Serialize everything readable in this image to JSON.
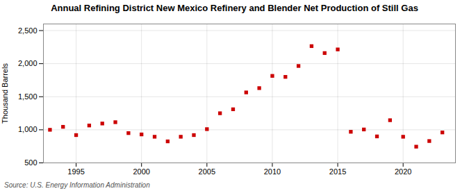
{
  "chart_data": {
    "type": "scatter",
    "title": "Annual Refining District New Mexico Refinery and Blender Net Production of Still Gas",
    "ylabel": "Thousand Barrels",
    "source": "Source: U.S. Energy Information Administration",
    "x": [
      1993,
      1994,
      1995,
      1996,
      1997,
      1998,
      1999,
      2000,
      2001,
      2002,
      2003,
      2004,
      2005,
      2006,
      2007,
      2008,
      2009,
      2010,
      2011,
      2012,
      2013,
      2014,
      2015,
      2016,
      2017,
      2018,
      2019,
      2020,
      2021,
      2022,
      2023
    ],
    "values": [
      1000,
      1045,
      920,
      1065,
      1095,
      1115,
      950,
      930,
      895,
      825,
      895,
      920,
      1010,
      1250,
      1310,
      1565,
      1630,
      1815,
      1800,
      1965,
      2265,
      2160,
      2215,
      970,
      1005,
      900,
      1145,
      895,
      745,
      830,
      960
    ],
    "color": "#cc0000",
    "marker": "square",
    "xlim": [
      1992.5,
      2024
    ],
    "xticks": [
      1995,
      2000,
      2005,
      2010,
      2015,
      2020
    ],
    "ylim": [
      500,
      2600
    ],
    "yticks": [
      500,
      {
        "value": 1000,
        "label": "1,000"
      },
      {
        "value": 1500,
        "label": "1,500"
      },
      {
        "value": 2000,
        "label": "2,000"
      },
      {
        "value": 2500,
        "label": "2,500"
      }
    ],
    "grid": true
  }
}
